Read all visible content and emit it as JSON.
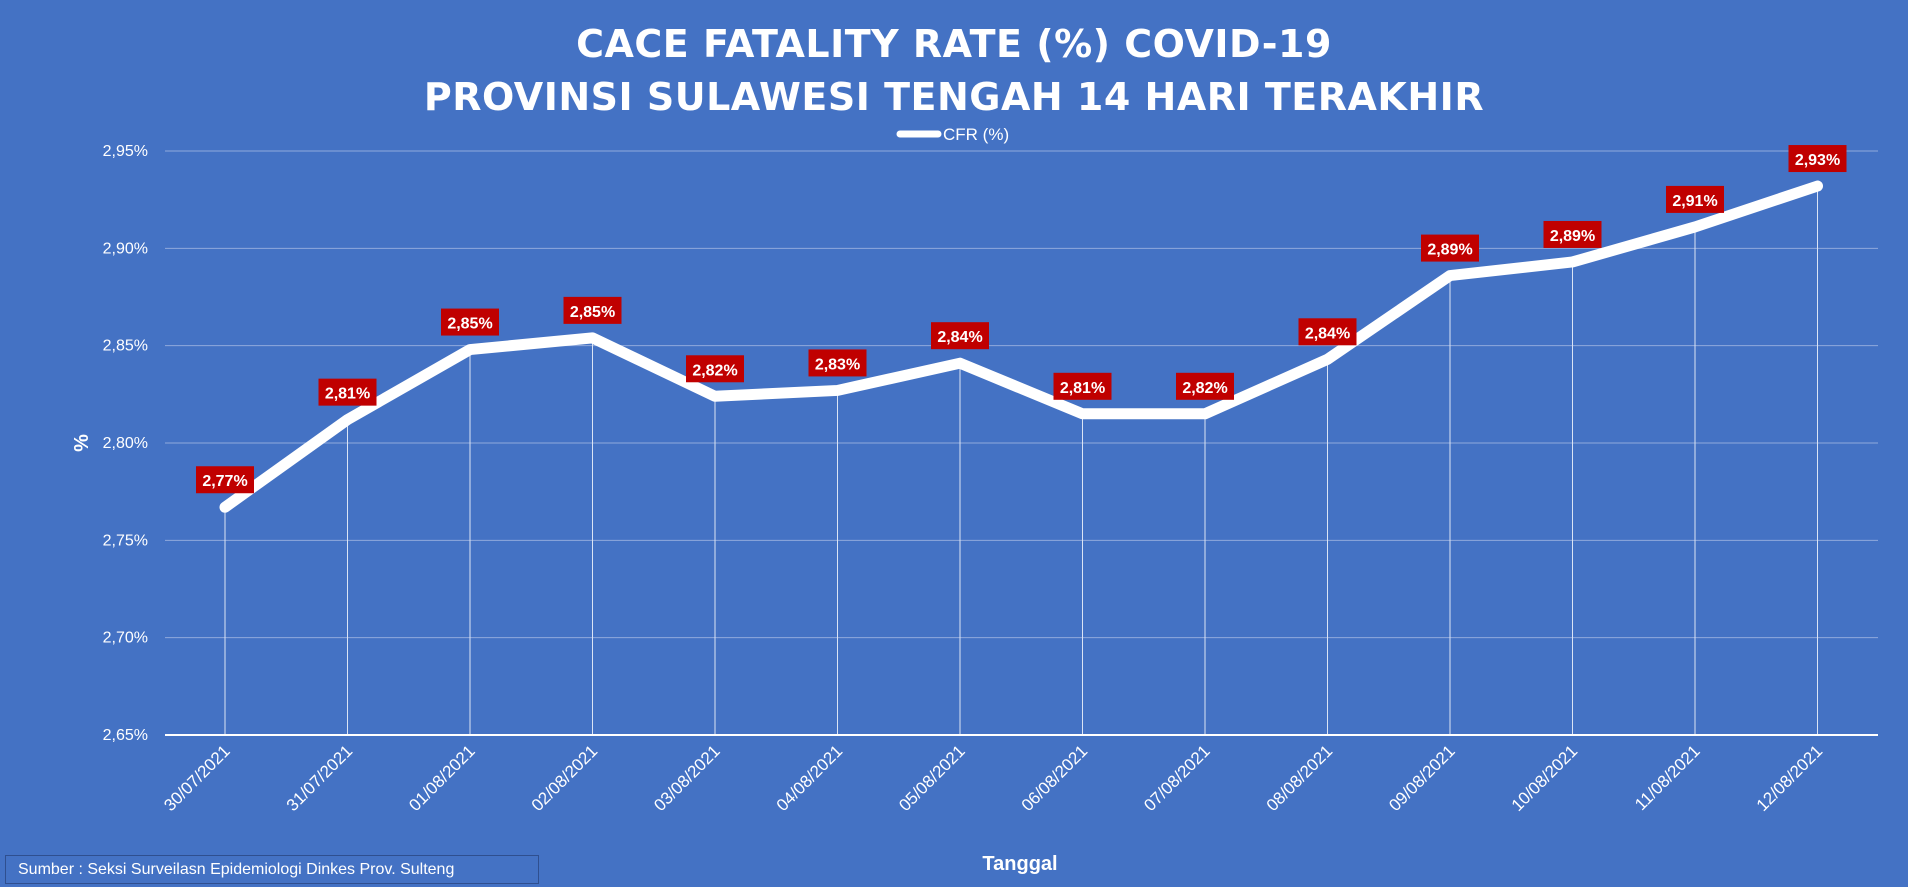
{
  "chart_data": {
    "type": "line",
    "title": "CACE FATALITY RATE (%) COVID-19",
    "subtitle": "PROVINSI SULAWESI TENGAH 14 HARI TERAKHIR",
    "xlabel": "Tanggal",
    "ylabel": "%",
    "ylim": [
      2.65,
      2.95
    ],
    "yticks": [
      "2,65%",
      "2,70%",
      "2,75%",
      "2,80%",
      "2,85%",
      "2,90%",
      "2,95%"
    ],
    "grid": true,
    "legend": "top-center",
    "categories": [
      "30/07/2021",
      "31/07/2021",
      "01/08/2021",
      "02/08/2021",
      "03/08/2021",
      "04/08/2021",
      "05/08/2021",
      "06/08/2021",
      "07/08/2021",
      "08/08/2021",
      "09/08/2021",
      "10/08/2021",
      "11/08/2021",
      "12/08/2021"
    ],
    "series": [
      {
        "name": "CFR (%)",
        "values": [
          2.767,
          2.812,
          2.848,
          2.854,
          2.824,
          2.827,
          2.841,
          2.815,
          2.815,
          2.843,
          2.886,
          2.893,
          2.911,
          2.932
        ],
        "labels": [
          "2,77%",
          "2,81%",
          "2,85%",
          "2,85%",
          "2,82%",
          "2,83%",
          "2,84%",
          "2,81%",
          "2,82%",
          "2,84%",
          "2,89%",
          "2,89%",
          "2,91%",
          "2,93%"
        ]
      }
    ]
  },
  "colors": {
    "background": "#4472c4",
    "line": "#ffffff",
    "label_bg": "#c00000",
    "grid": "#8faadc"
  },
  "source": "Sumber : Seksi Surveilasn Epidemiologi Dinkes Prov. Sulteng"
}
